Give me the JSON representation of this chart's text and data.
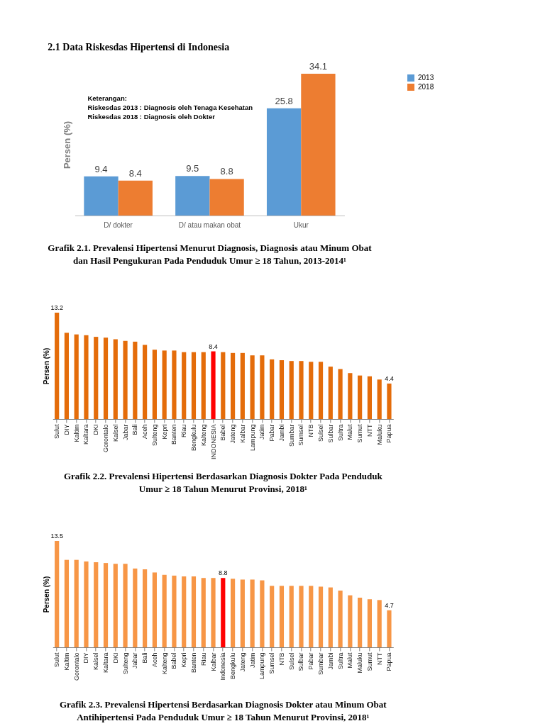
{
  "chart_data": [
    {
      "type": "bar",
      "title": "2.1 Data Riskesdas Hipertensi di Indonesia",
      "ylabel": "Persen (%)",
      "categories": [
        "D/ dokter",
        "D/ atau makan obat",
        "Ukur"
      ],
      "series": [
        {
          "name": "2013",
          "color": "#5b9bd5",
          "values": [
            9.4,
            9.5,
            25.8
          ]
        },
        {
          "name": "2018",
          "color": "#ed7d31",
          "values": [
            8.4,
            8.8,
            34.1
          ]
        }
      ],
      "data_labels": true,
      "legend": "right",
      "tick_labels": "x",
      "annotations": [
        "Keterangan:\nRiskesdas 2013 : Diagnosis oleh Tenaga Kesehatan\nRiskesdas 2018 : Diagnosis oleh Dokter",
        "Grafik 2.1. Prevalensi Hipertensi Menurut Diagnosis, Diagnosis atau Minum Obat\ndan Hasil Pengukuran Pada Penduduk Umur ≥ 18 Tahun, 2013-2014¹"
      ]
    },
    {
      "type": "bar",
      "ylabel": "Persen (%)",
      "tick_labels": "x",
      "categories": [
        "Sulut",
        "DIY",
        "Kaltim",
        "Kaltara",
        "DKI",
        "Gorontalo",
        "Kalsel",
        "Jabar",
        "Bali",
        "Aceh",
        "Sulteng",
        "Kepri",
        "Banten",
        "Riau",
        "Bengkulu",
        "Kalteng",
        "INDONESIA",
        "Babel",
        "Jateng",
        "Kalbar",
        "Lampung",
        "Jatim",
        "Pabar",
        "Jambi",
        "Sumbar",
        "Sumsel",
        "NTB",
        "Sulsel",
        "Sulbar",
        "Sultra",
        "Malut",
        "Sumut",
        "NTT",
        "Maluku",
        "Papua"
      ],
      "values": [
        13.2,
        10.7,
        10.5,
        10.4,
        10.2,
        10.1,
        9.9,
        9.7,
        9.6,
        9.2,
        8.6,
        8.5,
        8.5,
        8.3,
        8.3,
        8.3,
        8.4,
        8.3,
        8.2,
        8.2,
        7.9,
        7.9,
        7.4,
        7.3,
        7.2,
        7.2,
        7.1,
        7.1,
        6.5,
        6.2,
        5.7,
        5.4,
        5.3,
        4.9,
        4.4
      ],
      "value_labels": [
        "13.2",
        null,
        null,
        null,
        null,
        null,
        null,
        null,
        null,
        null,
        null,
        null,
        null,
        null,
        null,
        null,
        "8.4",
        null,
        null,
        null,
        null,
        null,
        null,
        null,
        null,
        null,
        null,
        null,
        null,
        null,
        null,
        null,
        null,
        null,
        "4.4"
      ],
      "colors": [
        "#e46c0a",
        "#e46c0a",
        "#e46c0a",
        "#e46c0a",
        "#e46c0a",
        "#e46c0a",
        "#e46c0a",
        "#e46c0a",
        "#e46c0a",
        "#e46c0a",
        "#e46c0a",
        "#e46c0a",
        "#e46c0a",
        "#e46c0a",
        "#e46c0a",
        "#e46c0a",
        "#ff0000",
        "#e46c0a",
        "#e46c0a",
        "#e46c0a",
        "#e46c0a",
        "#e46c0a",
        "#e46c0a",
        "#e46c0a",
        "#e46c0a",
        "#e46c0a",
        "#e46c0a",
        "#e46c0a",
        "#e46c0a",
        "#e46c0a",
        "#e46c0a",
        "#e46c0a",
        "#e46c0a",
        "#e46c0a",
        "#e46c0a"
      ],
      "annotations": [
        "Grafik 2.2. Prevalensi Hipertensi Berdasarkan Diagnosis Dokter Pada Penduduk\nUmur ≥ 18 Tahun Menurut Provinsi, 2018¹"
      ]
    },
    {
      "type": "bar",
      "ylabel": "Persen (%)",
      "tick_labels": "x",
      "categories": [
        "Sulut",
        "Kaltim",
        "Gorontalo",
        "DIY",
        "Kalsel",
        "Kaltara",
        "DKI",
        "Sulteng",
        "Jabar",
        "Bali",
        "Aceh",
        "Kalteng",
        "Babel",
        "Kepri",
        "Banten",
        "Riau",
        "Kalbar",
        "Indonesia",
        "Bengkulu",
        "Jateng",
        "Jatim",
        "Lampung",
        "Sumsel",
        "NTB",
        "Sulsel",
        "Sulbar",
        "Pabar",
        "Sumbar",
        "Jambi",
        "Sultra",
        "Malut",
        "Maluku",
        "Sumut",
        "NTT",
        "Papua"
      ],
      "values": [
        13.5,
        11.1,
        11.1,
        10.9,
        10.8,
        10.7,
        10.6,
        10.6,
        10.0,
        9.9,
        9.5,
        9.2,
        9.1,
        9.0,
        9.0,
        8.8,
        8.8,
        8.8,
        8.7,
        8.6,
        8.6,
        8.5,
        7.8,
        7.8,
        7.8,
        7.8,
        7.8,
        7.7,
        7.6,
        7.2,
        6.6,
        6.3,
        6.1,
        6.0,
        4.7
      ],
      "value_labels": [
        "13.5",
        null,
        null,
        null,
        null,
        null,
        null,
        null,
        null,
        null,
        null,
        null,
        null,
        null,
        null,
        null,
        null,
        "8.8",
        null,
        null,
        null,
        null,
        null,
        null,
        null,
        null,
        null,
        null,
        null,
        null,
        null,
        null,
        null,
        null,
        "4.7"
      ],
      "colors": [
        "#f79646",
        "#f79646",
        "#f79646",
        "#f79646",
        "#f79646",
        "#f79646",
        "#f79646",
        "#f79646",
        "#f79646",
        "#f79646",
        "#f79646",
        "#f79646",
        "#f79646",
        "#f79646",
        "#f79646",
        "#f79646",
        "#f79646",
        "#ff0000",
        "#f79646",
        "#f79646",
        "#f79646",
        "#f79646",
        "#f79646",
        "#f79646",
        "#f79646",
        "#f79646",
        "#f79646",
        "#f79646",
        "#f79646",
        "#f79646",
        "#f79646",
        "#f79646",
        "#f79646",
        "#f79646",
        "#f79646"
      ],
      "annotations": [
        "Grafik 2.3. Prevalensi Hipertensi Berdasarkan Diagnosis Dokter atau Minum Obat\nAntihipertensi Pada Penduduk Umur ≥ 18 Tahun Menurut Provinsi, 2018¹"
      ]
    }
  ]
}
